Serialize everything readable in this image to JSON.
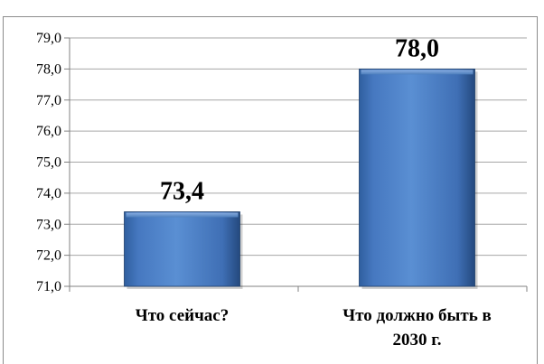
{
  "chart_data": {
    "type": "bar",
    "categories": [
      [
        "Что сейчас?"
      ],
      [
        "Что должно быть в",
        "2030 г."
      ]
    ],
    "values": [
      73.4,
      78.0
    ],
    "value_labels": [
      "73,4",
      "78,0"
    ],
    "ylim": [
      71.0,
      79.0
    ],
    "y_ticks": [
      "71,0",
      "72,0",
      "73,0",
      "74,0",
      "75,0",
      "76,0",
      "77,0",
      "78,0",
      "79,0"
    ],
    "grid": true,
    "bar_color": "#4f81bd",
    "grid_color": "#a6a6a6"
  }
}
